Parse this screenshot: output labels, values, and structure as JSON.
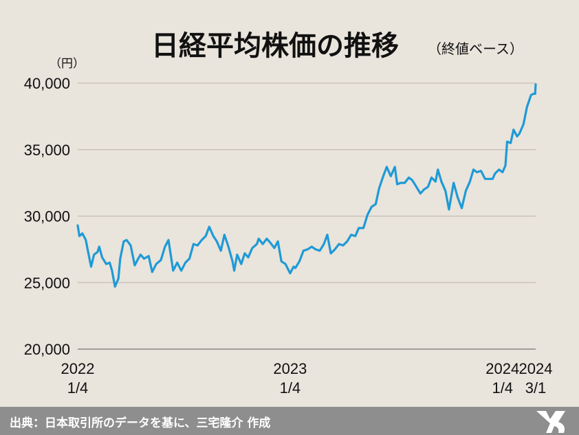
{
  "chart_data": {
    "type": "line",
    "title": "日経平均株価の推移",
    "subtitle": "（終値ベース）",
    "unit_label": "（円）",
    "ylim": [
      20000,
      40000
    ],
    "yticks": [
      "20,000",
      "25,000",
      "30,000",
      "35,000",
      "40,000"
    ],
    "ytick_values": [
      20000,
      25000,
      30000,
      35000,
      40000
    ],
    "xticks": [
      {
        "date": "2022-01-04",
        "line1": "2022",
        "line2": "1/4"
      },
      {
        "date": "2023-01-04",
        "line1": "2023",
        "line2": "1/4"
      },
      {
        "date": "2024-01-04",
        "line1": "2024",
        "line2": "1/4"
      },
      {
        "date": "2024-03-01",
        "line1": "2024",
        "line2": "3/1"
      }
    ],
    "grid": true,
    "series": [
      {
        "color": "#1e9ad6",
        "points": [
          [
            "2022-01-04",
            29300
          ],
          [
            "2022-01-07",
            28500
          ],
          [
            "2022-01-12",
            28700
          ],
          [
            "2022-01-18",
            28200
          ],
          [
            "2022-01-21",
            27500
          ],
          [
            "2022-01-27",
            26200
          ],
          [
            "2022-02-01",
            27100
          ],
          [
            "2022-02-07",
            27300
          ],
          [
            "2022-02-10",
            27700
          ],
          [
            "2022-02-15",
            26900
          ],
          [
            "2022-02-22",
            26400
          ],
          [
            "2022-02-28",
            26500
          ],
          [
            "2022-03-04",
            25900
          ],
          [
            "2022-03-09",
            24700
          ],
          [
            "2022-03-15",
            25300
          ],
          [
            "2022-03-18",
            26800
          ],
          [
            "2022-03-24",
            28100
          ],
          [
            "2022-03-29",
            28200
          ],
          [
            "2022-04-05",
            27800
          ],
          [
            "2022-04-12",
            26300
          ],
          [
            "2022-04-18",
            26800
          ],
          [
            "2022-04-22",
            27100
          ],
          [
            "2022-04-28",
            26800
          ],
          [
            "2022-05-06",
            27000
          ],
          [
            "2022-05-12",
            25800
          ],
          [
            "2022-05-19",
            26400
          ],
          [
            "2022-05-27",
            26700
          ],
          [
            "2022-06-03",
            27700
          ],
          [
            "2022-06-09",
            28200
          ],
          [
            "2022-06-17",
            25900
          ],
          [
            "2022-06-24",
            26500
          ],
          [
            "2022-07-01",
            25900
          ],
          [
            "2022-07-08",
            26500
          ],
          [
            "2022-07-15",
            26800
          ],
          [
            "2022-07-22",
            27900
          ],
          [
            "2022-07-29",
            27800
          ],
          [
            "2022-08-05",
            28200
          ],
          [
            "2022-08-12",
            28500
          ],
          [
            "2022-08-18",
            29200
          ],
          [
            "2022-08-25",
            28500
          ],
          [
            "2022-08-31",
            28100
          ],
          [
            "2022-09-07",
            27400
          ],
          [
            "2022-09-13",
            28600
          ],
          [
            "2022-09-20",
            27700
          ],
          [
            "2022-09-27",
            26600
          ],
          [
            "2022-09-30",
            25900
          ],
          [
            "2022-10-05",
            27100
          ],
          [
            "2022-10-12",
            26400
          ],
          [
            "2022-10-18",
            27200
          ],
          [
            "2022-10-24",
            26900
          ],
          [
            "2022-10-31",
            27600
          ],
          [
            "2022-11-08",
            27900
          ],
          [
            "2022-11-11",
            28300
          ],
          [
            "2022-11-18",
            27900
          ],
          [
            "2022-11-25",
            28300
          ],
          [
            "2022-12-01",
            28000
          ],
          [
            "2022-12-08",
            27600
          ],
          [
            "2022-12-14",
            28100
          ],
          [
            "2022-12-20",
            26600
          ],
          [
            "2022-12-27",
            26400
          ],
          [
            "2023-01-04",
            25700
          ],
          [
            "2023-01-10",
            26200
          ],
          [
            "2023-01-13",
            26100
          ],
          [
            "2023-01-20",
            26600
          ],
          [
            "2023-01-27",
            27400
          ],
          [
            "2023-02-03",
            27500
          ],
          [
            "2023-02-10",
            27700
          ],
          [
            "2023-02-17",
            27500
          ],
          [
            "2023-02-24",
            27400
          ],
          [
            "2023-03-03",
            27900
          ],
          [
            "2023-03-09",
            28600
          ],
          [
            "2023-03-15",
            27200
          ],
          [
            "2023-03-22",
            27500
          ],
          [
            "2023-03-29",
            27900
          ],
          [
            "2023-04-05",
            27800
          ],
          [
            "2023-04-12",
            28100
          ],
          [
            "2023-04-19",
            28600
          ],
          [
            "2023-04-26",
            28500
          ],
          [
            "2023-05-02",
            29100
          ],
          [
            "2023-05-10",
            29100
          ],
          [
            "2023-05-17",
            30100
          ],
          [
            "2023-05-24",
            30700
          ],
          [
            "2023-05-31",
            30900
          ],
          [
            "2023-06-06",
            32100
          ],
          [
            "2023-06-13",
            33000
          ],
          [
            "2023-06-19",
            33700
          ],
          [
            "2023-06-26",
            33000
          ],
          [
            "2023-07-03",
            33700
          ],
          [
            "2023-07-07",
            32400
          ],
          [
            "2023-07-13",
            32500
          ],
          [
            "2023-07-20",
            32500
          ],
          [
            "2023-07-27",
            32900
          ],
          [
            "2023-08-02",
            32700
          ],
          [
            "2023-08-09",
            32200
          ],
          [
            "2023-08-16",
            31700
          ],
          [
            "2023-08-22",
            32000
          ],
          [
            "2023-08-29",
            32200
          ],
          [
            "2023-09-04",
            32900
          ],
          [
            "2023-09-11",
            32600
          ],
          [
            "2023-09-15",
            33500
          ],
          [
            "2023-09-21",
            32600
          ],
          [
            "2023-09-28",
            31900
          ],
          [
            "2023-10-04",
            30500
          ],
          [
            "2023-10-12",
            32500
          ],
          [
            "2023-10-19",
            31400
          ],
          [
            "2023-10-26",
            30600
          ],
          [
            "2023-11-02",
            31900
          ],
          [
            "2023-11-09",
            32600
          ],
          [
            "2023-11-15",
            33500
          ],
          [
            "2023-11-21",
            33300
          ],
          [
            "2023-11-28",
            33400
          ],
          [
            "2023-12-05",
            32800
          ],
          [
            "2023-12-11",
            32800
          ],
          [
            "2023-12-18",
            32800
          ],
          [
            "2023-12-22",
            33200
          ],
          [
            "2023-12-29",
            33500
          ],
          [
            "2024-01-04",
            33300
          ],
          [
            "2024-01-09",
            33800
          ],
          [
            "2024-01-12",
            35600
          ],
          [
            "2024-01-18",
            35500
          ],
          [
            "2024-01-23",
            36500
          ],
          [
            "2024-01-29",
            36000
          ],
          [
            "2024-02-02",
            36200
          ],
          [
            "2024-02-09",
            36900
          ],
          [
            "2024-02-15",
            38200
          ],
          [
            "2024-02-22",
            39100
          ],
          [
            "2024-02-26",
            39200
          ],
          [
            "2024-02-29",
            39200
          ],
          [
            "2024-03-01",
            39900
          ]
        ]
      }
    ]
  },
  "footer": {
    "source": "出典：日本取引所のデータを基に、三宅隆介 作成",
    "logo_color": "#ffffff"
  }
}
